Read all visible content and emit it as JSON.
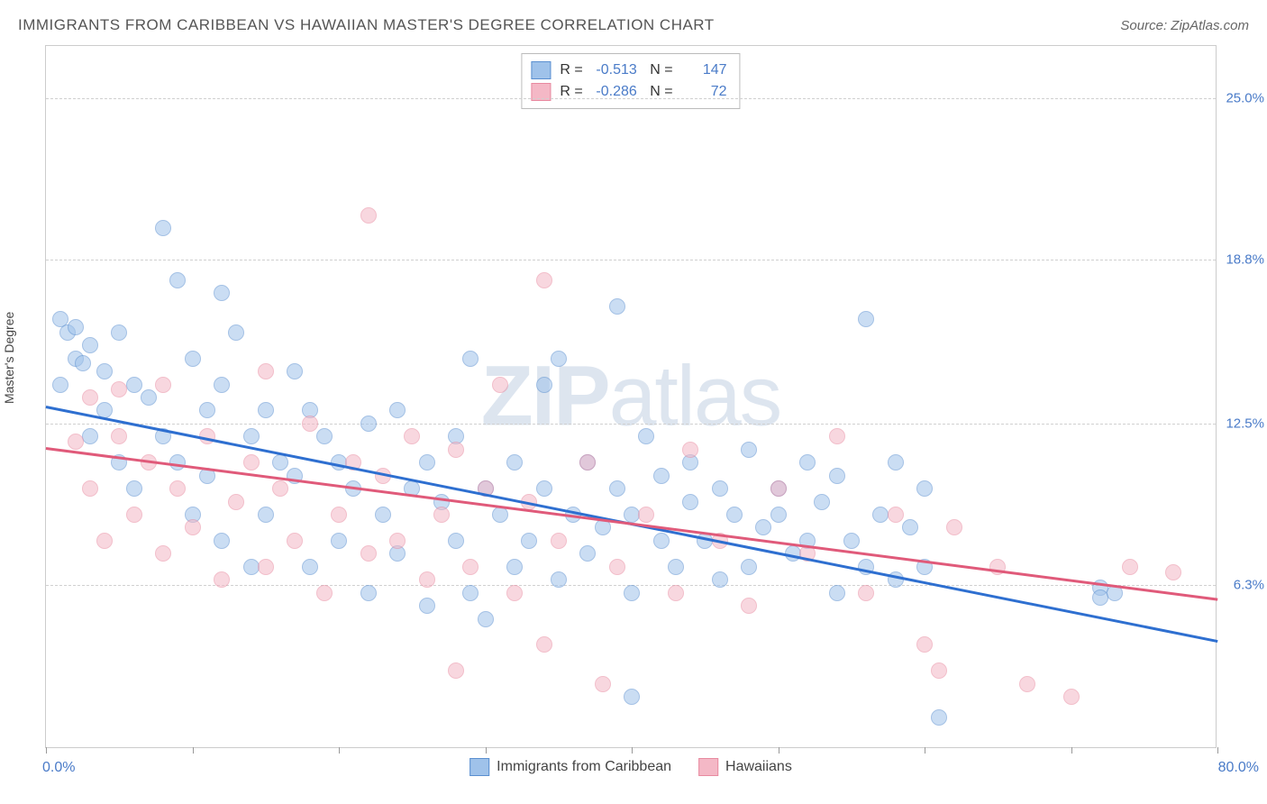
{
  "title": "IMMIGRANTS FROM CARIBBEAN VS HAWAIIAN MASTER'S DEGREE CORRELATION CHART",
  "source_label": "Source: ",
  "source_value": "ZipAtlas.com",
  "ylabel": "Master's Degree",
  "watermark_a": "ZIP",
  "watermark_b": "atlas",
  "chart": {
    "type": "scatter",
    "background_color": "#ffffff",
    "grid_color": "#d0d0d0",
    "border_color": "#cccccc",
    "xlim": [
      0,
      80
    ],
    "ylim": [
      0,
      27
    ],
    "xaxis_min_label": "0.0%",
    "xaxis_max_label": "80.0%",
    "xticks_pct": [
      0,
      10,
      20,
      30,
      40,
      50,
      60,
      70,
      80
    ],
    "yticks": [
      {
        "v": 6.3,
        "label": "6.3%"
      },
      {
        "v": 12.5,
        "label": "12.5%"
      },
      {
        "v": 18.8,
        "label": "18.8%"
      },
      {
        "v": 25.0,
        "label": "25.0%"
      }
    ],
    "marker_radius": 9,
    "marker_opacity": 0.55,
    "line_width": 2.5,
    "label_fontsize": 15,
    "tick_color": "#4a7bc8"
  },
  "series": [
    {
      "name": "Immigrants from Caribbean",
      "fill_color": "#9fc2ea",
      "stroke_color": "#5a8fd0",
      "line_color": "#2e6fd0",
      "R": "-0.513",
      "N": "147",
      "regression": {
        "x1": 0,
        "y1": 13.2,
        "x2": 80,
        "y2": 4.2
      },
      "points": [
        [
          1,
          16.5
        ],
        [
          1.5,
          16
        ],
        [
          2,
          16.2
        ],
        [
          2,
          15
        ],
        [
          2.5,
          14.8
        ],
        [
          1,
          14
        ],
        [
          3,
          15.5
        ],
        [
          3,
          12
        ],
        [
          4,
          14.5
        ],
        [
          4,
          13
        ],
        [
          5,
          16
        ],
        [
          5,
          11
        ],
        [
          6,
          14
        ],
        [
          6,
          10
        ],
        [
          7,
          13.5
        ],
        [
          8,
          20
        ],
        [
          8,
          12
        ],
        [
          9,
          18
        ],
        [
          9,
          11
        ],
        [
          10,
          15
        ],
        [
          10,
          9
        ],
        [
          11,
          13
        ],
        [
          11,
          10.5
        ],
        [
          12,
          14
        ],
        [
          12,
          8
        ],
        [
          13,
          16
        ],
        [
          14,
          12
        ],
        [
          14,
          7
        ],
        [
          15,
          13
        ],
        [
          15,
          9
        ],
        [
          16,
          11
        ],
        [
          17,
          10.5
        ],
        [
          17,
          14.5
        ],
        [
          18,
          13
        ],
        [
          18,
          7
        ],
        [
          19,
          12
        ],
        [
          20,
          11
        ],
        [
          20,
          8
        ],
        [
          21,
          10
        ],
        [
          22,
          12.5
        ],
        [
          22,
          6
        ],
        [
          23,
          9
        ],
        [
          24,
          13
        ],
        [
          24,
          7.5
        ],
        [
          25,
          10
        ],
        [
          26,
          11
        ],
        [
          26,
          5.5
        ],
        [
          27,
          9.5
        ],
        [
          28,
          12
        ],
        [
          28,
          8
        ],
        [
          29,
          15
        ],
        [
          29,
          6
        ],
        [
          30,
          10
        ],
        [
          30,
          5
        ],
        [
          31,
          9
        ],
        [
          32,
          11
        ],
        [
          32,
          7
        ],
        [
          33,
          8
        ],
        [
          34,
          10
        ],
        [
          34,
          14
        ],
        [
          35,
          15
        ],
        [
          35,
          6.5
        ],
        [
          36,
          9
        ],
        [
          37,
          11
        ],
        [
          37,
          7.5
        ],
        [
          38,
          8.5
        ],
        [
          39,
          10
        ],
        [
          39,
          17
        ],
        [
          40,
          9
        ],
        [
          40,
          6
        ],
        [
          41,
          12
        ],
        [
          42,
          8
        ],
        [
          42,
          10.5
        ],
        [
          43,
          7
        ],
        [
          44,
          9.5
        ],
        [
          44,
          11
        ],
        [
          45,
          8
        ],
        [
          46,
          10
        ],
        [
          46,
          6.5
        ],
        [
          47,
          9
        ],
        [
          48,
          11.5
        ],
        [
          48,
          7
        ],
        [
          49,
          8.5
        ],
        [
          50,
          10
        ],
        [
          50,
          9
        ],
        [
          51,
          7.5
        ],
        [
          52,
          11
        ],
        [
          52,
          8
        ],
        [
          53,
          9.5
        ],
        [
          54,
          10.5
        ],
        [
          54,
          6
        ],
        [
          55,
          8
        ],
        [
          56,
          16.5
        ],
        [
          56,
          7
        ],
        [
          57,
          9
        ],
        [
          58,
          11
        ],
        [
          58,
          6.5
        ],
        [
          59,
          8.5
        ],
        [
          60,
          10
        ],
        [
          60,
          7
        ],
        [
          72,
          6.2
        ],
        [
          72,
          5.8
        ],
        [
          73,
          6
        ],
        [
          61,
          1.2
        ],
        [
          12,
          17.5
        ],
        [
          40,
          2
        ]
      ]
    },
    {
      "name": "Hawaiians",
      "fill_color": "#f4b8c6",
      "stroke_color": "#e88aa0",
      "line_color": "#e05a7a",
      "R": "-0.286",
      "N": "72",
      "regression": {
        "x1": 0,
        "y1": 11.6,
        "x2": 80,
        "y2": 5.8
      },
      "points": [
        [
          2,
          11.8
        ],
        [
          3,
          10
        ],
        [
          3,
          13.5
        ],
        [
          4,
          8
        ],
        [
          5,
          12
        ],
        [
          5,
          13.8
        ],
        [
          6,
          9
        ],
        [
          7,
          11
        ],
        [
          8,
          7.5
        ],
        [
          8,
          14
        ],
        [
          9,
          10
        ],
        [
          10,
          8.5
        ],
        [
          11,
          12
        ],
        [
          12,
          6.5
        ],
        [
          13,
          9.5
        ],
        [
          14,
          11
        ],
        [
          15,
          7
        ],
        [
          15,
          14.5
        ],
        [
          16,
          10
        ],
        [
          17,
          8
        ],
        [
          18,
          12.5
        ],
        [
          19,
          6
        ],
        [
          20,
          9
        ],
        [
          21,
          11
        ],
        [
          22,
          7.5
        ],
        [
          22,
          20.5
        ],
        [
          23,
          10.5
        ],
        [
          24,
          8
        ],
        [
          25,
          12
        ],
        [
          26,
          6.5
        ],
        [
          27,
          9
        ],
        [
          28,
          3
        ],
        [
          28,
          11.5
        ],
        [
          29,
          7
        ],
        [
          30,
          10
        ],
        [
          31,
          14
        ],
        [
          32,
          6
        ],
        [
          33,
          9.5
        ],
        [
          34,
          18
        ],
        [
          34,
          4
        ],
        [
          35,
          8
        ],
        [
          37,
          11
        ],
        [
          38,
          2.5
        ],
        [
          39,
          7
        ],
        [
          41,
          9
        ],
        [
          43,
          6
        ],
        [
          44,
          11.5
        ],
        [
          46,
          8
        ],
        [
          48,
          5.5
        ],
        [
          50,
          10
        ],
        [
          52,
          7.5
        ],
        [
          54,
          12
        ],
        [
          56,
          6
        ],
        [
          58,
          9
        ],
        [
          60,
          4
        ],
        [
          61,
          3
        ],
        [
          62,
          8.5
        ],
        [
          65,
          7
        ],
        [
          67,
          2.5
        ],
        [
          70,
          2
        ],
        [
          74,
          7
        ],
        [
          77,
          6.8
        ]
      ]
    }
  ]
}
